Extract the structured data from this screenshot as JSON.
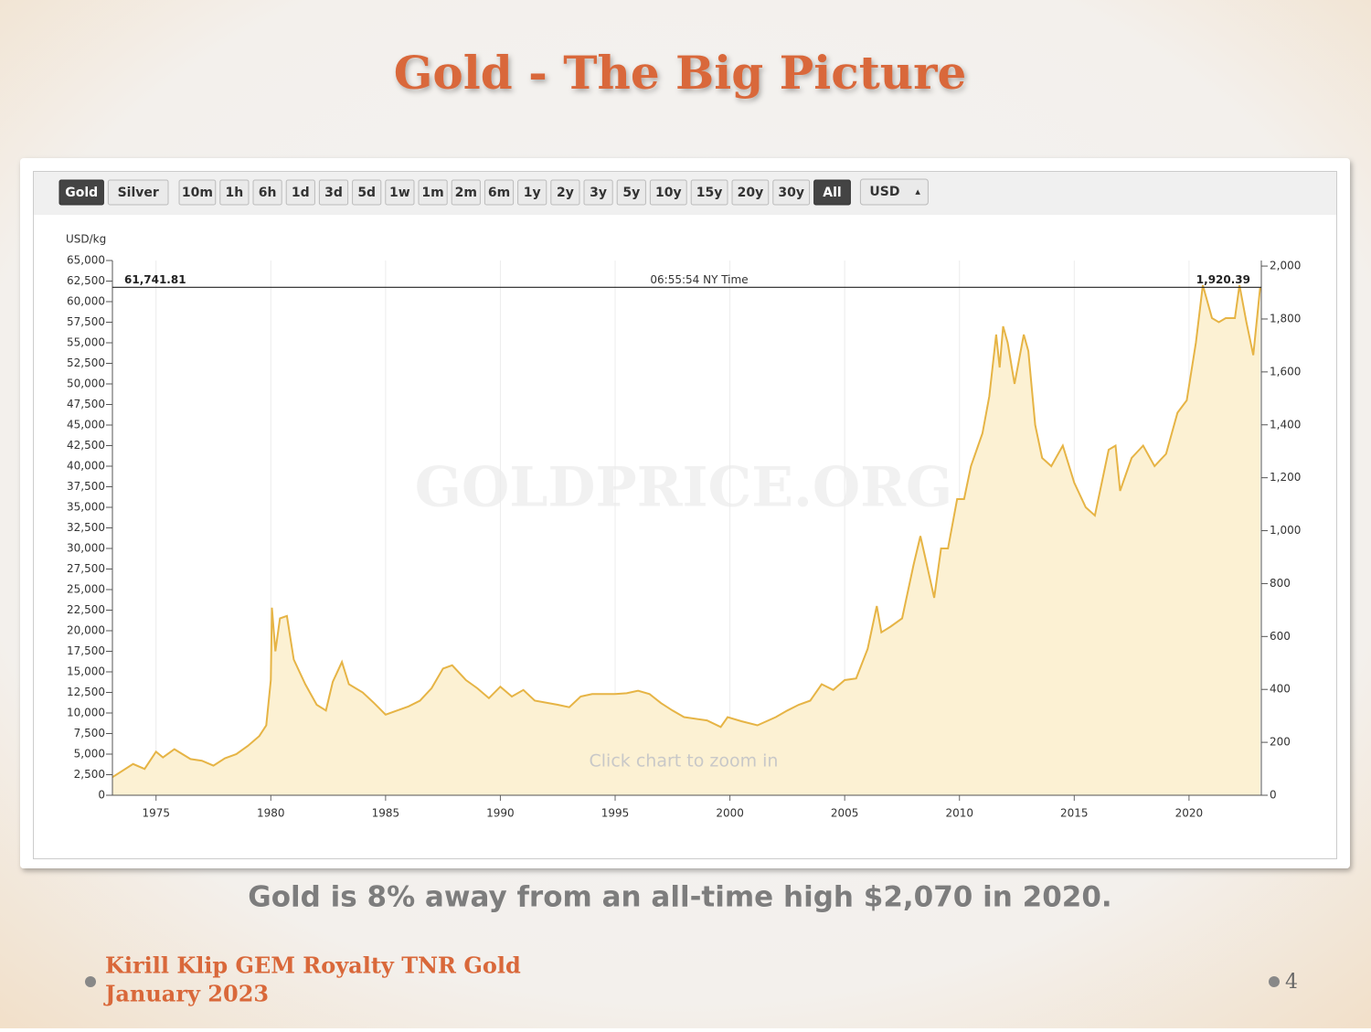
{
  "slide": {
    "title": "Gold - The Big Picture",
    "caption": "Gold is 8% away from an all-time high $2,070 in 2020.",
    "footer": [
      "Kirill Klip GEM Royalty TNR Gold",
      "January 2023"
    ],
    "page_number": "4"
  },
  "chart_data": {
    "type": "line",
    "buttons": [
      "Gold",
      "Silver",
      "10m",
      "1h",
      "6h",
      "1d",
      "3d",
      "5d",
      "1w",
      "1m",
      "2m",
      "6m",
      "1y",
      "2y",
      "3y",
      "5y",
      "10y",
      "15y",
      "20y",
      "30y",
      "All"
    ],
    "active_buttons": [
      0,
      20
    ],
    "currency": "USD",
    "y_label": "USD/kg",
    "watermark": "GOLDPRICE.ORG",
    "hint": "Click chart to zoom in",
    "timestamp": "06:55:54 NY Time",
    "current_value": 61741.81,
    "current_value_label": "61,741.81",
    "current_value_y2": 1920.39,
    "current_value_y2_label": "1,920.39",
    "color": "#e6b445",
    "fill_color": "#fcf1d3",
    "grid": "x",
    "x": [
      1973.1,
      1974.0,
      1974.5,
      1975.0,
      1975.3,
      1975.8,
      1976.5,
      1977.0,
      1977.5,
      1978.0,
      1978.5,
      1979.0,
      1979.5,
      1979.8,
      1980.0,
      1980.05,
      1980.2,
      1980.4,
      1980.7,
      1981.0,
      1981.5,
      1982.0,
      1982.4,
      1982.7,
      1983.1,
      1983.4,
      1984.0,
      1984.5,
      1985.0,
      1985.5,
      1986.0,
      1986.5,
      1987.0,
      1987.5,
      1987.9,
      1988.5,
      1989.0,
      1989.5,
      1990.0,
      1990.5,
      1991.0,
      1991.5,
      1992.5,
      1993.0,
      1993.5,
      1994.0,
      1995.0,
      1995.5,
      1996.0,
      1996.5,
      1997.0,
      1997.5,
      1998.0,
      1999.0,
      1999.6,
      1999.9,
      2000.5,
      2001.2,
      2002.0,
      2002.5,
      2003.0,
      2003.5,
      2004.0,
      2004.5,
      2005.0,
      2005.5,
      2006.0,
      2006.4,
      2006.6,
      2007.0,
      2007.5,
      2008.0,
      2008.3,
      2008.5,
      2008.9,
      2009.2,
      2009.5,
      2009.9,
      2010.2,
      2010.5,
      2011.0,
      2011.3,
      2011.6,
      2011.75,
      2011.9,
      2012.1,
      2012.4,
      2012.8,
      2013.0,
      2013.3,
      2013.6,
      2014.0,
      2014.5,
      2015.0,
      2015.5,
      2015.9,
      2016.5,
      2016.8,
      2017.0,
      2017.5,
      2018.0,
      2018.5,
      2019.0,
      2019.5,
      2019.9,
      2020.3,
      2020.6,
      2021.0,
      2021.3,
      2021.6,
      2022.0,
      2022.2,
      2022.5,
      2022.8,
      2023.1
    ],
    "values": [
      2200,
      3800,
      3200,
      5300,
      4600,
      5600,
      4400,
      4200,
      3600,
      4500,
      5000,
      6000,
      7200,
      8500,
      14000,
      22800,
      17500,
      21500,
      21800,
      16500,
      13500,
      11000,
      10300,
      13800,
      16200,
      13500,
      12500,
      11200,
      9800,
      10300,
      10800,
      11500,
      13000,
      15400,
      15800,
      14000,
      13000,
      11800,
      13200,
      12000,
      12800,
      11500,
      11000,
      10700,
      12000,
      12300,
      12300,
      12400,
      12700,
      12300,
      11200,
      10300,
      9500,
      9100,
      8300,
      9500,
      9000,
      8500,
      9500,
      10300,
      11000,
      11500,
      13500,
      12800,
      14000,
      14200,
      17800,
      23000,
      19800,
      20500,
      21500,
      28000,
      31500,
      29000,
      24000,
      30000,
      30000,
      36000,
      36000,
      40000,
      44000,
      48500,
      56000,
      52000,
      57000,
      55000,
      50000,
      56000,
      54000,
      45000,
      41000,
      40000,
      42500,
      38000,
      35000,
      34000,
      42000,
      42500,
      37000,
      41000,
      42500,
      40000,
      41500,
      46500,
      48000,
      55000,
      62000,
      58000,
      57500,
      58000,
      58000,
      62000,
      57500,
      53500,
      61700
    ],
    "xlim": [
      1973.1,
      2023.15
    ],
    "xticks": [
      1975,
      1980,
      1985,
      1990,
      1995,
      2000,
      2005,
      2010,
      2015,
      2020
    ],
    "ylim": [
      0,
      65000
    ],
    "yticks": [
      0,
      {
        "value": 2500,
        "label": "2,500"
      },
      {
        "value": 5000,
        "label": "5,000"
      },
      {
        "value": 7500,
        "label": "7,500"
      },
      {
        "value": 10000,
        "label": "10,000"
      },
      {
        "value": 12500,
        "label": "12,500"
      },
      {
        "value": 15000,
        "label": "15,000"
      },
      {
        "value": 17500,
        "label": "17,500"
      },
      {
        "value": 20000,
        "label": "20,000"
      },
      {
        "value": 22500,
        "label": "22,500"
      },
      {
        "value": 25000,
        "label": "25,000"
      },
      {
        "value": 27500,
        "label": "27,500"
      },
      {
        "value": 30000,
        "label": "30,000"
      },
      {
        "value": 32500,
        "label": "32,500"
      },
      {
        "value": 35000,
        "label": "35,000"
      },
      {
        "value": 37500,
        "label": "37,500"
      },
      {
        "value": 40000,
        "label": "40,000"
      },
      {
        "value": 42500,
        "label": "42,500"
      },
      {
        "value": 45000,
        "label": "45,000"
      },
      {
        "value": 47500,
        "label": "47,500"
      },
      {
        "value": 50000,
        "label": "50,000"
      },
      {
        "value": 52500,
        "label": "52,500"
      },
      {
        "value": 55000,
        "label": "55,000"
      },
      {
        "value": 57500,
        "label": "57,500"
      },
      {
        "value": 60000,
        "label": "60,000"
      },
      {
        "value": 62500,
        "label": "62,500"
      },
      {
        "value": 65000,
        "label": "65,000"
      }
    ],
    "y2lim": [
      0,
      2021
    ],
    "y2ticks": [
      0,
      200,
      400,
      600,
      800,
      {
        "value": 1000,
        "label": "1,000"
      },
      {
        "value": 1200,
        "label": "1,200"
      },
      {
        "value": 1400,
        "label": "1,400"
      },
      {
        "value": 1600,
        "label": "1,600"
      },
      {
        "value": 1800,
        "label": "1,800"
      },
      {
        "value": 2000,
        "label": "2,000"
      }
    ]
  }
}
